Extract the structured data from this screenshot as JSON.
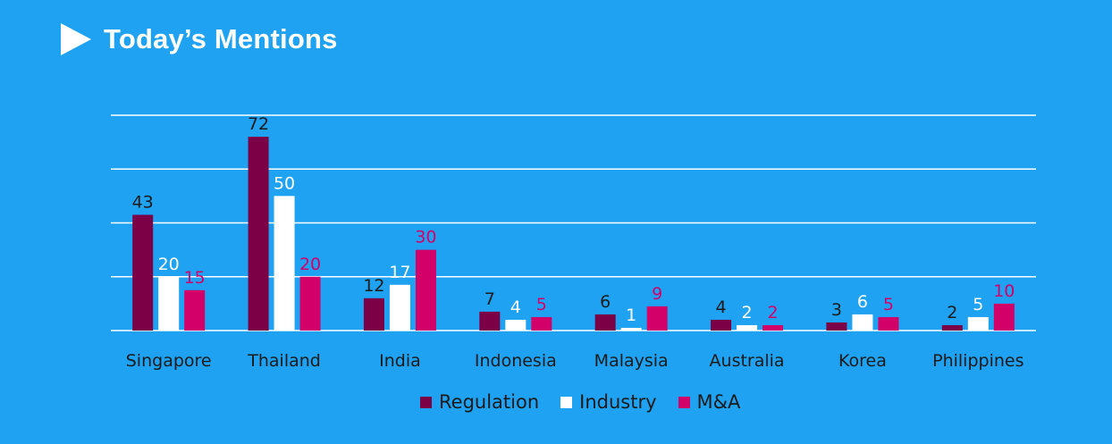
{
  "header": {
    "title": "Today’s Mentions",
    "arrow_icon": "play-arrow-icon"
  },
  "colors": {
    "background": "#1fa2f2",
    "regulation": "#7b0046",
    "industry": "#ffffff",
    "ma": "#d4006a",
    "grid": "#ffffff"
  },
  "legend": {
    "items": [
      {
        "label": "Regulation",
        "color": "#7b0046"
      },
      {
        "label": "Industry",
        "color": "#ffffff"
      },
      {
        "label": "M&A",
        "color": "#d4006a"
      }
    ],
    "placement": "bottom-center"
  },
  "chart_data": {
    "type": "bar",
    "categories": [
      "Singapore",
      "Thailand",
      "India",
      "Indonesia",
      "Malaysia",
      "Australia",
      "Korea",
      "Philippines"
    ],
    "series": [
      {
        "name": "Regulation",
        "values": [
          43,
          72,
          12,
          7,
          6,
          4,
          3,
          2
        ],
        "color": "#7b0046",
        "label_color": "#1a1a1a"
      },
      {
        "name": "Industry",
        "values": [
          20,
          50,
          17,
          4,
          1,
          2,
          6,
          5
        ],
        "color": "#ffffff",
        "label_color": "#ffffff"
      },
      {
        "name": "M&A",
        "values": [
          15,
          20,
          30,
          5,
          9,
          2,
          5,
          10
        ],
        "color": "#d4006a",
        "label_color": "#d4006a"
      }
    ],
    "ylim": [
      0,
      80
    ],
    "y_gridlines": [
      0,
      20,
      40,
      60,
      80
    ],
    "grid": true,
    "data_labels": true,
    "y_tick_labels_shown": false
  }
}
